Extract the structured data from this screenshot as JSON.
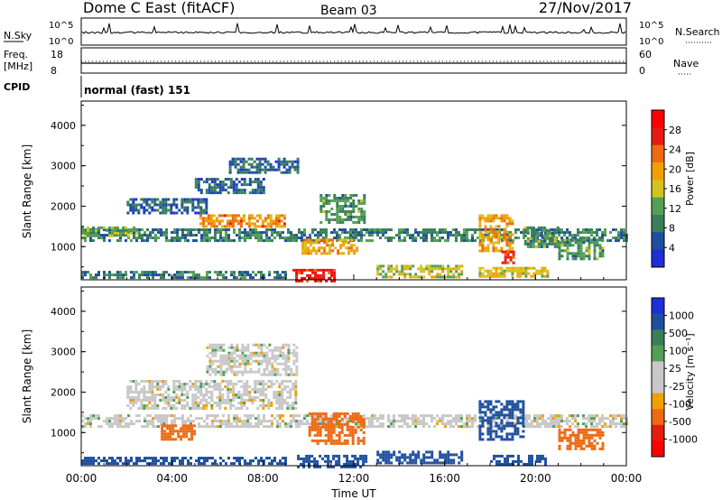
{
  "header": {
    "station": "Dome C East (fitACF)",
    "beam": "Beam 03",
    "date": "27/Nov/2017"
  },
  "strip_nsky": {
    "label": "N.Sky",
    "ticks_left": [
      "10^5",
      "10^0"
    ],
    "ticks_right": [
      "10^5",
      "10^0"
    ],
    "right_label": "N.Search"
  },
  "strip_freq": {
    "label_line1": "Freq.",
    "label_line2": "[MHz]",
    "ticks_left": [
      "18",
      "8"
    ],
    "ticks_right": [
      "60",
      "0"
    ],
    "right_label": "Nave"
  },
  "cpid": {
    "label": "CPID",
    "value": "normal (fast) 151"
  },
  "colors": {
    "power_scale": [
      "#1f2fd6",
      "#1e4f9e",
      "#3a7f5a",
      "#52a056",
      "#d4c21e",
      "#f0a000",
      "#ee6a14",
      "#e61c12",
      "#ff0000"
    ],
    "velocity_scale": [
      "#1f2fd6",
      "#1e4f9e",
      "#3a7f5a",
      "#52a056",
      "#c8c8c8",
      "#c8c8c8",
      "#f0a000",
      "#ee6a14",
      "#e61c12",
      "#ff0000"
    ]
  },
  "chart_data": [
    {
      "type": "heatmap",
      "name": "power",
      "ylabel": "Slant Range [km]",
      "xlabel": "",
      "xlim": [
        0,
        24
      ],
      "ylim": [
        180,
        4600
      ],
      "yticks": [
        "1000",
        "2000",
        "3000",
        "4000"
      ],
      "colorbar": {
        "label": "Power [dB]",
        "ticks": [
          "28",
          "24",
          "20",
          "16",
          "12",
          "8",
          "4"
        ],
        "range": [
          0,
          30
        ]
      },
      "regions": [
        {
          "x0": 0.0,
          "x1": 24.0,
          "y0": 1150,
          "y1": 1450,
          "value": 8
        },
        {
          "x0": 0.0,
          "x1": 2.5,
          "y0": 1250,
          "y1": 1500,
          "value": 12
        },
        {
          "x0": 2.0,
          "x1": 5.5,
          "y0": 1800,
          "y1": 2200,
          "value": 6
        },
        {
          "x0": 5.2,
          "x1": 9.0,
          "y0": 1500,
          "y1": 1800,
          "value": 20
        },
        {
          "x0": 6.5,
          "x1": 9.5,
          "y0": 2800,
          "y1": 3200,
          "value": 6
        },
        {
          "x0": 5.0,
          "x1": 8.0,
          "y0": 2300,
          "y1": 2700,
          "value": 6
        },
        {
          "x0": 9.3,
          "x1": 11.2,
          "y0": 180,
          "y1": 450,
          "value": 26
        },
        {
          "x0": 9.7,
          "x1": 12.2,
          "y0": 800,
          "y1": 1200,
          "value": 18
        },
        {
          "x0": 10.5,
          "x1": 12.5,
          "y0": 1600,
          "y1": 2300,
          "value": 10
        },
        {
          "x0": 13.0,
          "x1": 16.8,
          "y0": 250,
          "y1": 550,
          "value": 14
        },
        {
          "x0": 17.5,
          "x1": 19.0,
          "y0": 900,
          "y1": 1800,
          "value": 18
        },
        {
          "x0": 18.5,
          "x1": 19.0,
          "y0": 600,
          "y1": 900,
          "value": 26
        },
        {
          "x0": 17.5,
          "x1": 20.5,
          "y0": 250,
          "y1": 500,
          "value": 16
        },
        {
          "x0": 19.5,
          "x1": 21.0,
          "y0": 1000,
          "y1": 1500,
          "value": 10
        },
        {
          "x0": 21.0,
          "x1": 23.0,
          "y0": 700,
          "y1": 1200,
          "value": 10
        },
        {
          "x0": 0.0,
          "x1": 9.0,
          "y0": 200,
          "y1": 400,
          "value": 8
        }
      ]
    },
    {
      "type": "heatmap",
      "name": "velocity",
      "ylabel": "Slant Range [km]",
      "xlabel": "Time UT",
      "xlim": [
        0,
        24
      ],
      "ylim": [
        180,
        4600
      ],
      "xticks": [
        "00:00",
        "04:00",
        "08:00",
        "12:00",
        "16:00",
        "20:00",
        "00:00"
      ],
      "yticks": [
        "1000",
        "2000",
        "3000",
        "4000"
      ],
      "colorbar": {
        "label": "Velocity [m s⁻¹]",
        "ticks": [
          "1000",
          "500",
          "100",
          "25",
          "-25",
          "-100",
          "-500",
          "-1000"
        ]
      },
      "regions": [
        {
          "x0": 0.0,
          "x1": 24.0,
          "y0": 1150,
          "y1": 1450,
          "value": 0
        },
        {
          "x0": 2.0,
          "x1": 9.5,
          "y0": 1600,
          "y1": 2300,
          "value": 0
        },
        {
          "x0": 5.5,
          "x1": 9.5,
          "y0": 2400,
          "y1": 3200,
          "value": 0
        },
        {
          "x0": 3.5,
          "x1": 5.0,
          "y0": 800,
          "y1": 1200,
          "value": -300
        },
        {
          "x0": 9.5,
          "x1": 12.5,
          "y0": 180,
          "y1": 450,
          "value": 200
        },
        {
          "x0": 10.0,
          "x1": 12.5,
          "y0": 700,
          "y1": 1500,
          "value": -300
        },
        {
          "x0": 13.0,
          "x1": 16.8,
          "y0": 250,
          "y1": 550,
          "value": 200
        },
        {
          "x0": 17.5,
          "x1": 19.5,
          "y0": 800,
          "y1": 1800,
          "value": 200
        },
        {
          "x0": 18.0,
          "x1": 20.5,
          "y0": 200,
          "y1": 450,
          "value": 200
        },
        {
          "x0": 21.0,
          "x1": 23.0,
          "y0": 600,
          "y1": 1100,
          "value": -400
        },
        {
          "x0": 0.0,
          "x1": 9.0,
          "y0": 200,
          "y1": 400,
          "value": 150
        }
      ]
    }
  ]
}
